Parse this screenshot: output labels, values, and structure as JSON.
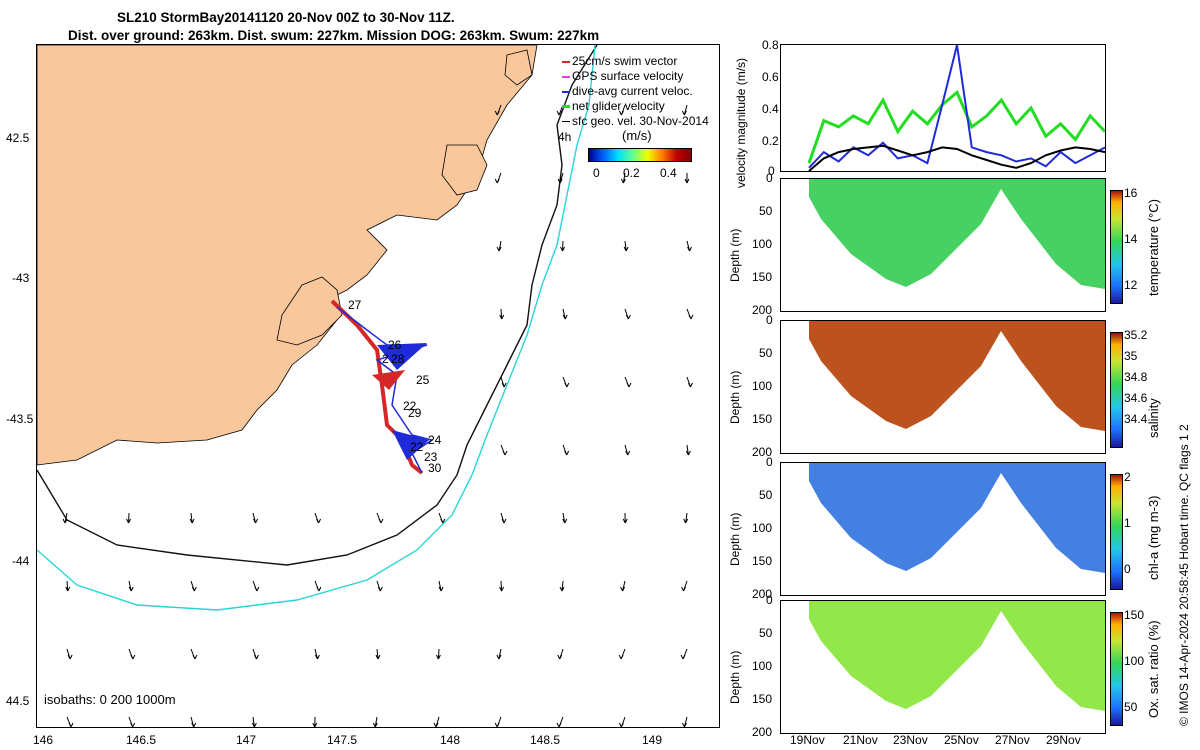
{
  "title_line1": "SL210 StormBay20141120 20-Nov 00Z to 30-Nov 11Z.",
  "title_line2": "Dist. over ground: 263km. Dist. swum: 227km. Mission DOG: 263km. Swum: 227km",
  "map": {
    "xticks": [
      "146",
      "146.5",
      "147",
      "147.5",
      "148",
      "148.5",
      "149"
    ],
    "yticks": [
      "42.5",
      "-43",
      "-43.5",
      "-44",
      "44.5"
    ],
    "legend": [
      "25cm/s swim vector",
      "GPS surface velocity",
      "dive-avg current veloc.",
      "net glider velocity",
      "sfc geo. vel. 30-Nov-2014"
    ],
    "legend_colors": [
      "#d62728",
      "#e040e0",
      "#1f2ad8",
      "#22dd22",
      "#000000"
    ],
    "speed_label": "(m/s)",
    "speed_ticks": [
      "0",
      "0.2",
      "0.4"
    ],
    "four_h_label": "4h",
    "isobath_label": "isobaths: 0   200  1000m",
    "day_labels": [
      "27",
      "26",
      "2",
      "28",
      "25",
      "22",
      "29",
      "24",
      "22",
      "23",
      "30"
    ]
  },
  "chart_data": [
    {
      "type": "line",
      "ylabel": "velocity magnitude (m/s)",
      "ylim": [
        0,
        0.8
      ],
      "yticks": [
        "0",
        "0.2",
        "0.4",
        "0.6",
        "0.8"
      ],
      "x": [
        0,
        1,
        2,
        3,
        4,
        5,
        6,
        7,
        8,
        9,
        10,
        11,
        12,
        13,
        14,
        15,
        16,
        17,
        18,
        19,
        20
      ],
      "series": [
        {
          "name": "net glider velocity",
          "color": "#22dd22",
          "values": [
            0.05,
            0.32,
            0.28,
            0.35,
            0.3,
            0.45,
            0.25,
            0.38,
            0.3,
            0.42,
            0.5,
            0.28,
            0.35,
            0.45,
            0.3,
            0.4,
            0.22,
            0.3,
            0.2,
            0.35,
            0.25
          ]
        },
        {
          "name": "dive-avg current veloc.",
          "color": "#1f2ad8",
          "values": [
            0.02,
            0.12,
            0.06,
            0.15,
            0.1,
            0.18,
            0.08,
            0.1,
            0.05,
            0.42,
            0.8,
            0.15,
            0.12,
            0.1,
            0.06,
            0.08,
            0.03,
            0.12,
            0.05,
            0.1,
            0.15
          ]
        },
        {
          "name": "sfc geo. vel.",
          "color": "#000000",
          "values": [
            0.0,
            0.08,
            0.12,
            0.14,
            0.15,
            0.16,
            0.13,
            0.1,
            0.12,
            0.15,
            0.14,
            0.1,
            0.07,
            0.04,
            0.02,
            0.05,
            0.1,
            0.13,
            0.15,
            0.14,
            0.12
          ]
        }
      ]
    },
    {
      "type": "heatmap",
      "ylabel": "Depth (m)",
      "cblabel": "temperature (°C)",
      "cbticks": [
        "16",
        "14",
        "12"
      ],
      "yticks": [
        "0",
        "50",
        "100",
        "150",
        "200"
      ],
      "vmin": 10,
      "vmax": 16.5
    },
    {
      "type": "heatmap",
      "ylabel": "Depth (m)",
      "cblabel": "salinity",
      "cbticks": [
        "35.2",
        "35",
        "34.8",
        "34.6",
        "34.4"
      ],
      "yticks": [
        "0",
        "50",
        "100",
        "150",
        "200"
      ],
      "vmin": 34.35,
      "vmax": 35.3
    },
    {
      "type": "heatmap",
      "ylabel": "Depth (m)",
      "cblabel": "chl-a (mg m-3)",
      "cbticks": [
        "2",
        "1",
        "0"
      ],
      "yticks": [
        "0",
        "50",
        "100",
        "150",
        "200"
      ],
      "vmin": 0,
      "vmax": 2
    },
    {
      "type": "heatmap",
      "ylabel": "Depth (m)",
      "cblabel": "Ox. sat. ratio (%)",
      "cbticks": [
        "150",
        "100",
        "50"
      ],
      "yticks": [
        "0",
        "50",
        "100",
        "150",
        "200"
      ],
      "vmin": 20,
      "vmax": 170
    }
  ],
  "time_ticks": [
    "19Nov",
    "21Nov",
    "23Nov",
    "25Nov",
    "27Nov",
    "29Nov"
  ],
  "footer": "© IMOS 14-Apr-2024 20:58:45 Hobart time. QC flags 1  2",
  "colors": {
    "land": "#f8c79b",
    "bath200": "#111111",
    "bath1000": "#2bd4d4"
  }
}
